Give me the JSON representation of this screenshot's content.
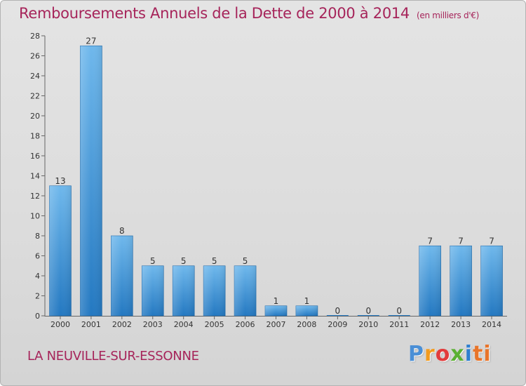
{
  "title": {
    "main": "Remboursements Annuels de la Dette de 2000 à 2014",
    "unit": "(en milliers d'€)"
  },
  "commune": "LA NEUVILLE-SUR-ESSONNE",
  "logo": {
    "text": "Proxiti",
    "letters": [
      "P",
      "r",
      "o",
      "x",
      "i",
      "ti"
    ]
  },
  "chart_data": {
    "type": "bar",
    "categories": [
      "2000",
      "2001",
      "2002",
      "2003",
      "2004",
      "2005",
      "2006",
      "2007",
      "2008",
      "2009",
      "2010",
      "2011",
      "2012",
      "2013",
      "2014"
    ],
    "values": [
      13,
      27,
      8,
      5,
      5,
      5,
      5,
      1,
      1,
      0,
      0,
      0,
      7,
      7,
      7
    ],
    "data_labels": [
      "13",
      "27",
      "8",
      "5",
      "5",
      "5",
      "5",
      "1",
      "1",
      "0",
      "0",
      "0",
      "7",
      "7",
      "7"
    ],
    "ylim": [
      0,
      28
    ],
    "yticks": [
      0,
      2,
      4,
      6,
      8,
      10,
      12,
      14,
      16,
      18,
      20,
      22,
      24,
      26,
      28
    ],
    "ytick_labels": [
      "0",
      "2",
      "4",
      "6",
      "8",
      "10",
      "12",
      "14",
      "16",
      "18",
      "20",
      "22",
      "24",
      "26",
      "28"
    ],
    "xlabel": "",
    "ylabel": "",
    "grid": false,
    "bar_color_light": "#6fb8ec",
    "bar_color_dark": "#2378c1",
    "title_color": "#a6245a"
  }
}
